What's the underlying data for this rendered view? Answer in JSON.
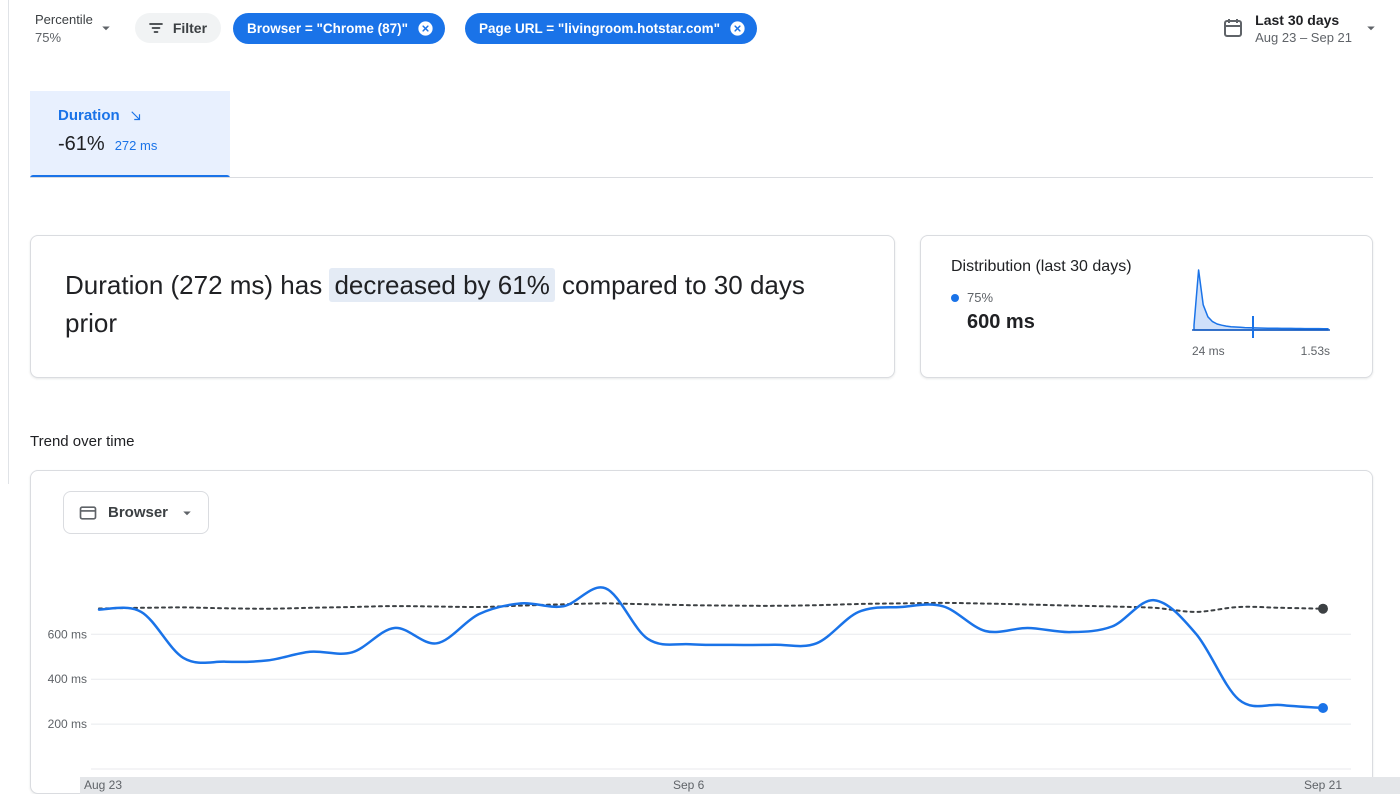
{
  "colors": {
    "accent": "#1a73e8",
    "text": "#202124",
    "muted": "#5f6368",
    "border": "#dadce0",
    "tab_bg": "#e8f0fe",
    "filter_bg": "#f1f3f4",
    "highlight_bg": "#e4ebf5",
    "prev_line": "#3c4043",
    "strip_bg": "#e4e6e9"
  },
  "toolbar": {
    "percentile_label": "Percentile",
    "percentile_value": "75%",
    "filter_label": "Filter",
    "chips": [
      "Browser = \"Chrome (87)\"",
      "Page URL = \"livingroom.hotstar.com\""
    ],
    "date_range_title": "Last 30 days",
    "date_range_value": "Aug 23 – Sep 21"
  },
  "metric_tab": {
    "label": "Duration",
    "delta": "-61%",
    "value": "272 ms"
  },
  "summary": {
    "text_before": "Duration (272 ms) has ",
    "highlight": "decreased by 61%",
    "text_after": " compared to 30 days prior"
  },
  "distribution": {
    "title": "Distribution (last 30 days)",
    "legend": "75%",
    "value": "600 ms"
  },
  "trend": {
    "title": "Trend over time",
    "dropdown": "Browser"
  },
  "chart_data": [
    {
      "type": "line",
      "title": "Trend over time",
      "unit": "ms",
      "ylim": [
        0,
        900
      ],
      "y_ticks": [
        {
          "value": 200,
          "label": "200 ms"
        },
        {
          "value": 400,
          "label": "400 ms"
        },
        {
          "value": 600,
          "label": "600 ms"
        }
      ],
      "x": [
        "Aug 23",
        "Aug 24",
        "Aug 25",
        "Aug 26",
        "Aug 27",
        "Aug 28",
        "Aug 29",
        "Aug 30",
        "Aug 31",
        "Sep 1",
        "Sep 2",
        "Sep 3",
        "Sep 4",
        "Sep 5",
        "Sep 6",
        "Sep 7",
        "Sep 8",
        "Sep 9",
        "Sep 10",
        "Sep 11",
        "Sep 12",
        "Sep 13",
        "Sep 14",
        "Sep 15",
        "Sep 16",
        "Sep 17",
        "Sep 18",
        "Sep 19",
        "Sep 20",
        "Sep 21"
      ],
      "x_ticks": [
        {
          "index": 0,
          "label": "Aug 23"
        },
        {
          "index": 14,
          "label": "Sep 6"
        },
        {
          "index": 29,
          "label": "Sep 21"
        }
      ],
      "series": [
        {
          "name": "previous_period",
          "color": "#3c4043",
          "dashed": true,
          "values": [
            715,
            718,
            720,
            716,
            714,
            718,
            722,
            726,
            724,
            722,
            728,
            734,
            738,
            734,
            730,
            728,
            727,
            730,
            735,
            738,
            740,
            737,
            733,
            728,
            724,
            718,
            700,
            722,
            718,
            714
          ]
        },
        {
          "name": "current_period",
          "color": "#1a73e8",
          "dashed": false,
          "values": [
            710,
            700,
            495,
            478,
            484,
            522,
            520,
            628,
            560,
            690,
            738,
            725,
            805,
            580,
            556,
            553,
            554,
            560,
            700,
            722,
            725,
            615,
            628,
            610,
            635,
            752,
            600,
            310,
            285,
            272
          ]
        }
      ]
    },
    {
      "type": "area",
      "title": "Distribution (last 30 days)",
      "x_min_label": "24 ms",
      "x_max_label": "1.53s",
      "values": [
        8,
        100,
        42,
        22,
        14,
        10,
        8,
        6.5,
        5.5,
        5,
        4.5,
        4,
        3.8,
        3.5,
        3.3,
        3.1,
        3,
        2.9,
        2.8,
        2.7,
        2.6,
        2.6,
        2.5,
        2.5,
        2.4,
        2.4,
        2.3,
        2.3,
        2.2,
        2.2
      ],
      "marker": {
        "position": 0.44,
        "label": "600 ms",
        "percentile": "75%"
      },
      "fill": "#cfe0fa",
      "stroke": "#1a73e8",
      "baseline_color": "#185abc"
    }
  ]
}
